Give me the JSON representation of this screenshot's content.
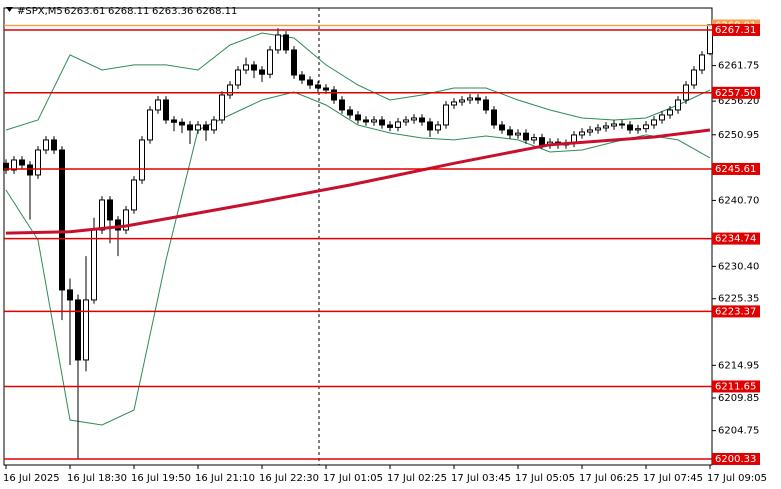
{
  "chart_data": {
    "type": "candlestick",
    "title": "#SPX,M5",
    "categories": [
      "16 Jul 2025",
      null,
      null,
      null,
      null,
      null,
      null,
      null,
      "16 Jul 18:30",
      null,
      null,
      null,
      null,
      null,
      null,
      null,
      "16 Jul 19:50",
      null,
      null,
      null,
      null,
      null,
      null,
      null,
      "16 Jul 21:10",
      null,
      null,
      null,
      null,
      null,
      null,
      null,
      "16 Jul 22:30",
      null,
      null,
      null,
      null,
      null,
      null,
      null,
      "17 Jul 01:05",
      null,
      null,
      null,
      null,
      null,
      null,
      null,
      "17 Jul 02:25",
      null,
      null,
      null,
      null,
      null,
      null,
      null,
      "17 Jul 03:45",
      null,
      null,
      null,
      null,
      null,
      null,
      null,
      "17 Jul 05:05",
      null,
      null,
      null,
      null,
      null,
      null,
      null,
      "17 Jul 06:25",
      null,
      null,
      null,
      null,
      null,
      null,
      null,
      "17 Jul 07:45",
      null,
      null,
      null,
      null,
      null,
      null,
      null,
      "17 Jul 09:05"
    ],
    "open": [
      6246.5,
      6245.45,
      6247.01,
      6246.23,
      6244.67,
      6248.57,
      6250.14,
      6248.57,
      6226.72,
      6225.16,
      6215.79,
      6225.16,
      6236.08,
      6240.77,
      6237.65,
      6236.08,
      6239.21,
      6243.89,
      6250.14,
      6254.82,
      6256.38,
      6253.26,
      6252.9,
      6252.48,
      6251.7,
      6252.48,
      6251.7,
      6253.26,
      6257.16,
      6258.72,
      6261.06,
      6261.85,
      6261.06,
      6260.4,
      6264.19,
      6266.53,
      6264.19,
      6260.28,
      6259.5,
      6258.72,
      6258.25,
      6257.94,
      6256.38,
      6254.82,
      6254.04,
      6253.26,
      6252.95,
      6253.26,
      6252.48,
      6252.1,
      6252.95,
      6253.26,
      6253.57,
      6252.95,
      6251.7,
      6252.48,
      6255.6,
      6256.07,
      6256.38,
      6256.69,
      6256.38,
      6254.82,
      6252.48,
      6251.7,
      6250.92,
      6251.2,
      6250.14,
      6250.5,
      6249.36,
      6249.8,
      6249.36,
      6249.6,
      6250.92,
      6251.38,
      6251.7,
      6252.01,
      6252.32,
      6252.63,
      6252.48,
      6251.7,
      6251.9,
      6252.48,
      6253.26,
      6254.04,
      6254.82,
      6256.38,
      6258.72,
      6261.06,
      6263.61
    ],
    "high": [
      6247.1,
      6247.61,
      6247.61,
      6246.83,
      6249.17,
      6250.74,
      6250.74,
      6249.17,
      6228.5,
      6226.0,
      6232.0,
      6238.0,
      6241.37,
      6241.37,
      6238.25,
      6239.81,
      6244.49,
      6250.74,
      6255.42,
      6257.0,
      6256.98,
      6253.86,
      6253.5,
      6253.08,
      6253.08,
      6253.08,
      6253.86,
      6257.76,
      6259.32,
      6261.66,
      6263.0,
      6262.45,
      6261.66,
      6264.79,
      6267.6,
      6267.13,
      6264.79,
      6260.88,
      6260.1,
      6259.32,
      6258.85,
      6258.54,
      6256.98,
      6255.42,
      6254.64,
      6253.86,
      6253.86,
      6253.86,
      6253.08,
      6253.55,
      6253.86,
      6254.17,
      6254.17,
      6253.55,
      6253.08,
      6256.2,
      6256.67,
      6256.98,
      6257.29,
      6257.29,
      6256.98,
      6255.42,
      6253.08,
      6252.3,
      6251.8,
      6251.8,
      6251.1,
      6251.1,
      6250.4,
      6250.4,
      6250.2,
      6251.52,
      6251.98,
      6252.3,
      6252.61,
      6252.92,
      6253.23,
      6253.23,
      6253.08,
      6252.5,
      6253.08,
      6253.86,
      6254.64,
      6255.42,
      6256.98,
      6259.32,
      6261.66,
      6264.01,
      6268.11
    ],
    "low": [
      6244.85,
      6244.85,
      6245.63,
      6237.7,
      6244.07,
      6247.97,
      6247.97,
      6222.0,
      6215.0,
      6200.33,
      6214.0,
      6224.56,
      6235.48,
      6234.0,
      6232.0,
      6235.48,
      6238.61,
      6243.29,
      6249.54,
      6254.22,
      6252.66,
      6251.5,
      6251.2,
      6249.5,
      6251.1,
      6250.0,
      6251.1,
      6252.66,
      6256.56,
      6258.12,
      6260.46,
      6259.8,
      6259.2,
      6259.8,
      6263.59,
      6263.59,
      6259.68,
      6258.9,
      6258.12,
      6257.65,
      6257.34,
      6255.78,
      6254.22,
      6253.44,
      6252.66,
      6252.35,
      6252.35,
      6251.88,
      6251.5,
      6251.5,
      6252.35,
      6252.66,
      6252.35,
      6250.6,
      6251.1,
      6251.88,
      6255.0,
      6255.47,
      6255.78,
      6255.78,
      6254.22,
      6251.88,
      6251.1,
      6250.32,
      6250.32,
      6249.54,
      6249.54,
      6248.76,
      6248.76,
      6248.76,
      6248.76,
      6249.0,
      6250.32,
      6250.78,
      6251.1,
      6251.41,
      6251.72,
      6251.88,
      6251.1,
      6251.1,
      6251.3,
      6251.88,
      6252.66,
      6253.44,
      6254.22,
      6255.78,
      6258.12,
      6260.46,
      6263.36
    ],
    "close": [
      6245.45,
      6247.01,
      6246.23,
      6244.67,
      6248.57,
      6250.14,
      6248.57,
      6226.72,
      6225.16,
      6215.79,
      6225.16,
      6236.08,
      6240.77,
      6237.65,
      6236.08,
      6239.21,
      6243.89,
      6250.14,
      6254.82,
      6256.38,
      6253.26,
      6252.9,
      6252.48,
      6251.7,
      6252.48,
      6251.7,
      6253.26,
      6257.16,
      6258.72,
      6261.06,
      6261.85,
      6261.06,
      6260.4,
      6264.19,
      6266.53,
      6264.19,
      6260.28,
      6259.5,
      6258.72,
      6258.25,
      6257.94,
      6256.38,
      6254.82,
      6254.04,
      6253.26,
      6252.95,
      6253.26,
      6252.48,
      6252.1,
      6252.95,
      6253.26,
      6253.57,
      6252.95,
      6251.7,
      6252.48,
      6255.6,
      6256.07,
      6256.38,
      6256.69,
      6256.38,
      6254.82,
      6252.48,
      6251.7,
      6250.92,
      6251.2,
      6250.14,
      6250.5,
      6249.36,
      6249.8,
      6249.36,
      6249.6,
      6250.92,
      6251.38,
      6251.7,
      6252.01,
      6252.32,
      6252.63,
      6252.48,
      6251.7,
      6251.9,
      6252.48,
      6253.26,
      6254.04,
      6254.82,
      6256.38,
      6258.72,
      6261.06,
      6263.41,
      6268.11
    ],
    "lines": [
      {
        "color": "#c8102e",
        "width": 3,
        "x": [
          0,
          8,
          15,
          31,
          43,
          56,
          68,
          81,
          88
        ],
        "values": [
          6235.6,
          6235.8,
          6236.7,
          6240.3,
          6243.1,
          6246.5,
          6249.4,
          6250.6,
          6251.7
        ]
      },
      {
        "color": "#2e8b57",
        "width": 1,
        "x": [
          0,
          4,
          8,
          12,
          16,
          20,
          24,
          28,
          32,
          36,
          40,
          44,
          48,
          52,
          56,
          60,
          64,
          68,
          72,
          76,
          80,
          84,
          88
        ],
        "values": [
          6251.7,
          6253.26,
          6263.41,
          6261.06,
          6261.85,
          6261.85,
          6261.06,
          6264.97,
          6266.84,
          6266.06,
          6261.85,
          6258.72,
          6256.38,
          6257.16,
          6258.25,
          6258.25,
          6256.38,
          6254.82,
          6253.57,
          6253.26,
          6253.57,
          6255.6,
          6257.94
        ]
      },
      {
        "color": "#2e8b57",
        "width": 1,
        "x": [
          0,
          4,
          8,
          12,
          16,
          20,
          24,
          28,
          32,
          36,
          40,
          44,
          48,
          52,
          56,
          60,
          64,
          68,
          72,
          76,
          80,
          84,
          88
        ],
        "values": [
          6242.33,
          6234.52,
          6206.42,
          6205.64,
          6207.98,
          6231.4,
          6251.7,
          6254.04,
          6256.38,
          6257.63,
          6255.6,
          6252.48,
          6251.23,
          6250.45,
          6250.14,
          6250.76,
          6250.14,
          6248.26,
          6248.57,
          6249.82,
          6250.92,
          6250.14,
          6247.33
        ]
      }
    ],
    "levels": [
      6268.01,
      6267.31,
      {
        "value": 6257.5,
        "label": "6257.50"
      },
      6245.61,
      6234.74,
      6223.37,
      6211.65,
      6200.33
    ],
    "level_colors": [
      "#f0a050",
      "#e00000",
      "#e00000",
      "#e00000",
      "#e00000",
      "#e00000",
      "#e00000",
      "#e00000"
    ],
    "ylim": [
      6199.39,
      6270.74
    ],
    "yticks": [
      {
        "value": 6267.4,
        "label": "6267.40"
      },
      6261.75,
      {
        "value": 6256.2,
        "label": "6256.20"
      },
      6250.95,
      {
        "value": 6240.7,
        "label": "6240.70"
      },
      {
        "value": 6230.4,
        "label": "6230.40"
      },
      6225.35,
      6214.95,
      6209.85,
      6204.75
    ],
    "up_color": "#ffffff",
    "down_color": "#000000"
  }
}
